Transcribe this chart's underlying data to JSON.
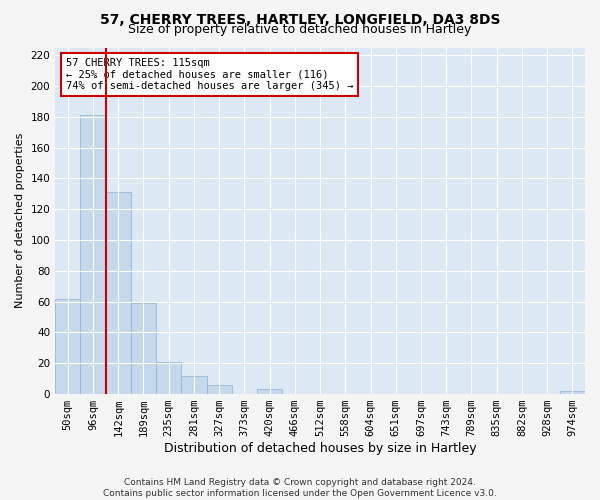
{
  "title": "57, CHERRY TREES, HARTLEY, LONGFIELD, DA3 8DS",
  "subtitle": "Size of property relative to detached houses in Hartley",
  "xlabel": "Distribution of detached houses by size in Hartley",
  "ylabel": "Number of detached properties",
  "footer_line1": "Contains HM Land Registry data © Crown copyright and database right 2024.",
  "footer_line2": "Contains public sector information licensed under the Open Government Licence v3.0.",
  "categories": [
    "50sqm",
    "96sqm",
    "142sqm",
    "189sqm",
    "235sqm",
    "281sqm",
    "327sqm",
    "373sqm",
    "420sqm",
    "466sqm",
    "512sqm",
    "558sqm",
    "604sqm",
    "651sqm",
    "697sqm",
    "743sqm",
    "789sqm",
    "835sqm",
    "882sqm",
    "928sqm",
    "974sqm"
  ],
  "values": [
    62,
    181,
    131,
    59,
    21,
    12,
    6,
    0,
    3,
    0,
    0,
    0,
    0,
    0,
    0,
    0,
    0,
    0,
    0,
    0,
    2
  ],
  "bar_color": "#c5d8ec",
  "bar_edge_color": "#8cb0d0",
  "vline_x": 1.5,
  "vline_color": "#cc0000",
  "annotation_text": "57 CHERRY TREES: 115sqm\n← 25% of detached houses are smaller (116)\n74% of semi-detached houses are larger (345) →",
  "annotation_box_color": "#ffffff",
  "annotation_box_edge_color": "#cc0000",
  "ylim": [
    0,
    225
  ],
  "yticks": [
    0,
    20,
    40,
    60,
    80,
    100,
    120,
    140,
    160,
    180,
    200,
    220
  ],
  "fig_bg_color": "#f5f5f5",
  "plot_bg_color": "#dde8f5",
  "title_fontsize": 10,
  "subtitle_fontsize": 9,
  "xlabel_fontsize": 9,
  "ylabel_fontsize": 8,
  "tick_fontsize": 7.5,
  "annotation_fontsize": 7.5,
  "footer_fontsize": 6.5
}
